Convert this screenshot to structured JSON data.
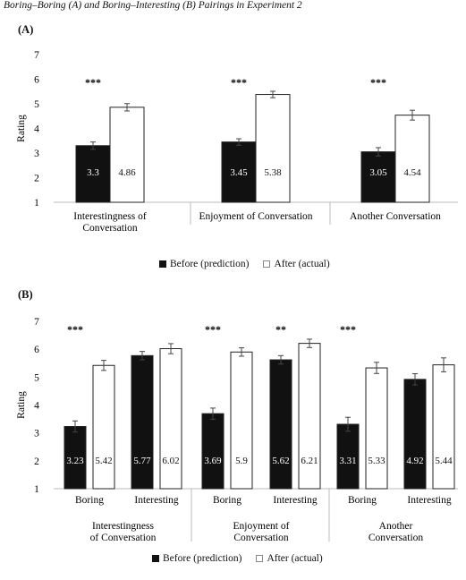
{
  "caption": "Boring–Boring (A) and Boring–Interesting (B) Pairings in Experiment 2",
  "chart_data": [
    {
      "type": "bar",
      "panel": "(A)",
      "ylabel": "Rating",
      "ylim": [
        1,
        7
      ],
      "yticks": [
        "1",
        "2",
        "3",
        "4",
        "5",
        "6",
        "7"
      ],
      "grid": false,
      "legend_position": "bottom",
      "legend": [
        "Before (prediction)",
        "After (actual)"
      ],
      "colors": {
        "before": "#111111",
        "after": "#ffffff"
      },
      "groups": [
        {
          "label": [
            "Interestingness of",
            "Conversation"
          ],
          "sig": "***",
          "bars": [
            {
              "series": "Before (prediction)",
              "value": 3.3,
              "label": "3.3",
              "err": 0.15
            },
            {
              "series": "After (actual)",
              "value": 4.86,
              "label": "4.86",
              "err": 0.15
            }
          ]
        },
        {
          "label": [
            "Enjoyment of Conversation"
          ],
          "sig": "***",
          "bars": [
            {
              "series": "Before (prediction)",
              "value": 3.45,
              "label": "3.45",
              "err": 0.13
            },
            {
              "series": "After (actual)",
              "value": 5.38,
              "label": "5.38",
              "err": 0.13
            }
          ]
        },
        {
          "label": [
            "Another Conversation"
          ],
          "sig": "***",
          "bars": [
            {
              "series": "Before (prediction)",
              "value": 3.05,
              "label": "3.05",
              "err": 0.17
            },
            {
              "series": "After (actual)",
              "value": 4.54,
              "label": "4.54",
              "err": 0.2
            }
          ]
        }
      ]
    },
    {
      "type": "bar",
      "panel": "(B)",
      "ylabel": "Rating",
      "ylim": [
        1,
        7
      ],
      "yticks": [
        "1",
        "2",
        "3",
        "4",
        "5",
        "6",
        "7"
      ],
      "grid": false,
      "legend_position": "bottom",
      "legend": [
        "Before (prediction)",
        "After (actual)"
      ],
      "colors": {
        "before": "#111111",
        "after": "#ffffff"
      },
      "groups": [
        {
          "label": [
            "Interestingness",
            "of Conversation"
          ],
          "subgroups": [
            {
              "label": "Boring",
              "sig": "***",
              "bars": [
                {
                  "series": "Before (prediction)",
                  "value": 3.23,
                  "label": "3.23",
                  "err": 0.2
                },
                {
                  "series": "After (actual)",
                  "value": 5.42,
                  "label": "5.42",
                  "err": 0.18
                }
              ]
            },
            {
              "label": "Interesting",
              "sig": "",
              "bars": [
                {
                  "series": "Before (prediction)",
                  "value": 5.77,
                  "label": "5.77",
                  "err": 0.15
                },
                {
                  "series": "After (actual)",
                  "value": 6.02,
                  "label": "6.02",
                  "err": 0.18
                }
              ]
            }
          ]
        },
        {
          "label": [
            "Enjoyment of",
            "Conversation"
          ],
          "subgroups": [
            {
              "label": "Boring",
              "sig": "***",
              "bars": [
                {
                  "series": "Before (prediction)",
                  "value": 3.69,
                  "label": "3.69",
                  "err": 0.2
                },
                {
                  "series": "After (actual)",
                  "value": 5.9,
                  "label": "5.9",
                  "err": 0.15
                }
              ]
            },
            {
              "label": "Interesting",
              "sig": "**",
              "bars": [
                {
                  "series": "Before (prediction)",
                  "value": 5.62,
                  "label": "5.62",
                  "err": 0.15
                },
                {
                  "series": "After (actual)",
                  "value": 6.21,
                  "label": "6.21",
                  "err": 0.15
                }
              ]
            }
          ]
        },
        {
          "label": [
            "Another",
            "Conversation"
          ],
          "subgroups": [
            {
              "label": "Boring",
              "sig": "***",
              "bars": [
                {
                  "series": "Before (prediction)",
                  "value": 3.31,
                  "label": "3.31",
                  "err": 0.25
                },
                {
                  "series": "After (actual)",
                  "value": 5.33,
                  "label": "5.33",
                  "err": 0.2
                }
              ]
            },
            {
              "label": "Interesting",
              "sig": "",
              "bars": [
                {
                  "series": "Before (prediction)",
                  "value": 4.92,
                  "label": "4.92",
                  "err": 0.2
                },
                {
                  "series": "After (actual)",
                  "value": 5.44,
                  "label": "5.44",
                  "err": 0.25
                }
              ]
            }
          ]
        }
      ]
    }
  ]
}
